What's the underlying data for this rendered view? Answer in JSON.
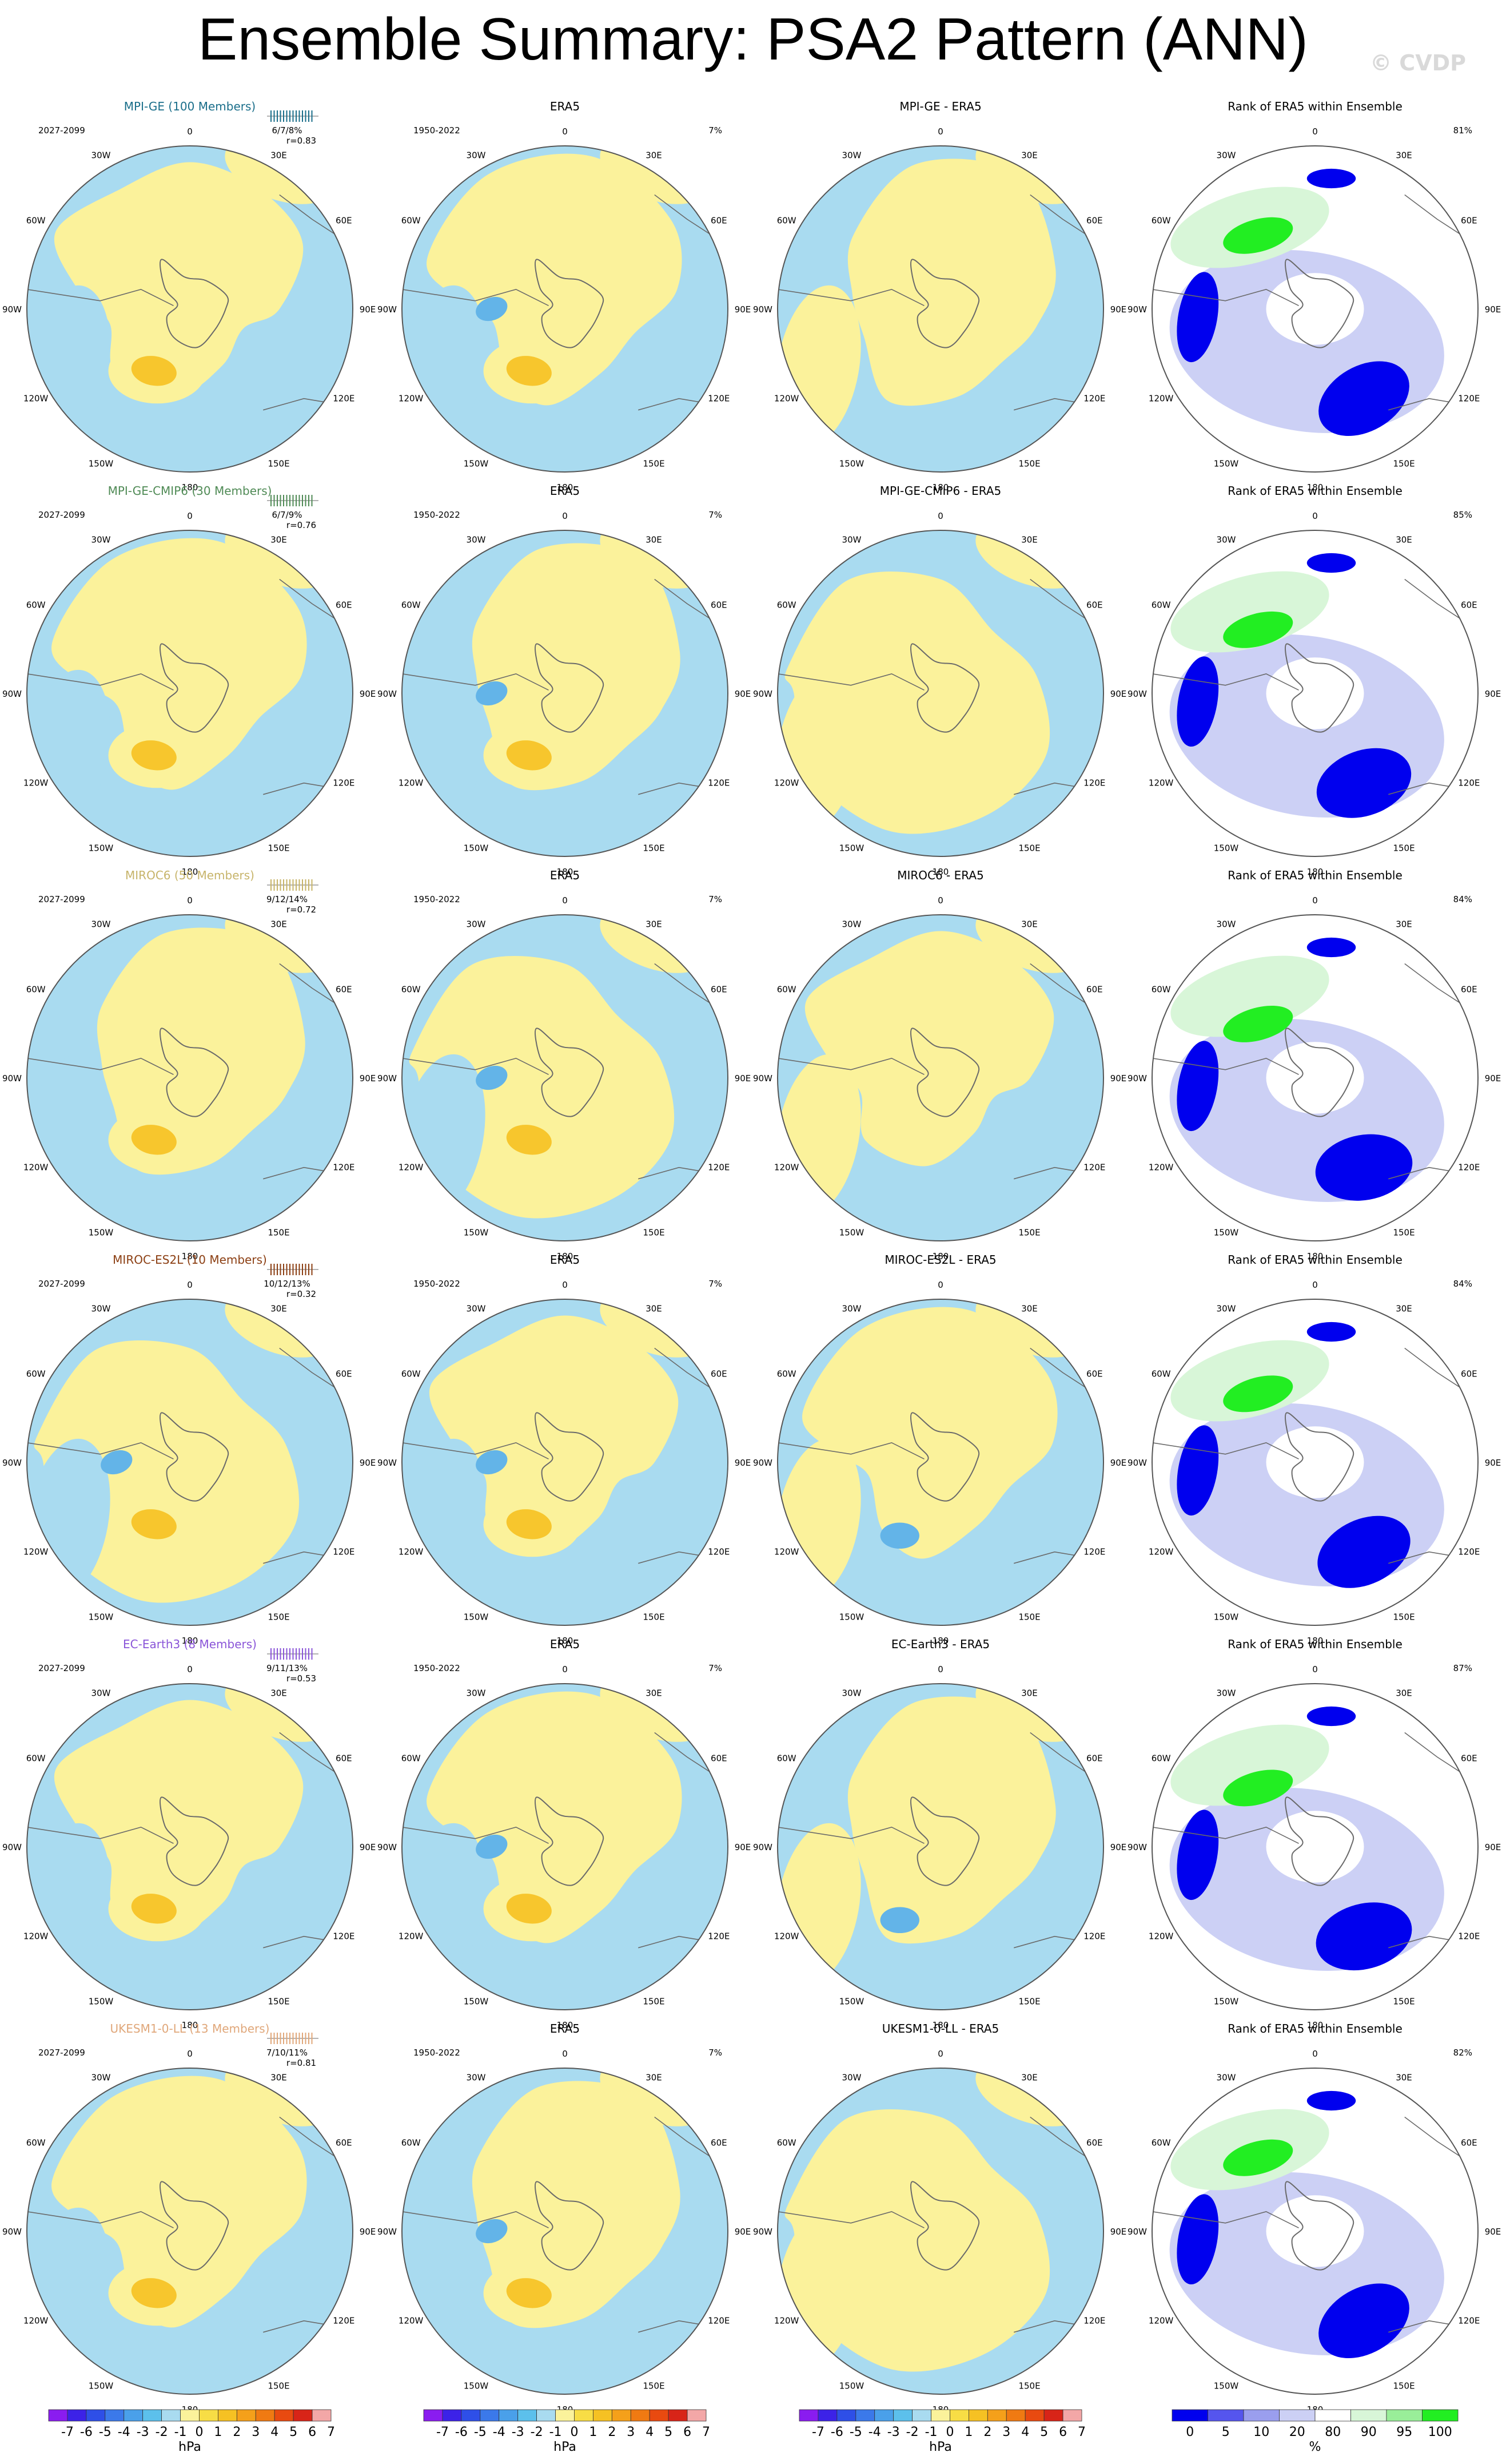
{
  "page": {
    "title": "Ensemble Summary: PSA2 Pattern (ANN)",
    "watermark": "© CVDP"
  },
  "colors": {
    "ocean_blue": "#a9dbf0",
    "land_yellow": "#fbf29b",
    "positive_strong": "#f7c62d",
    "negative_strong": "#63b4e8",
    "rank_blue": "#0000ee",
    "rank_lightblue": "#ccd0f5",
    "rank_green": "#22ee22",
    "rank_lightgreen": "#d8f6d8"
  },
  "lon_labels": [
    "0",
    "30E",
    "60E",
    "90E",
    "120E",
    "150E",
    "180",
    "150W",
    "120W",
    "90W",
    "60W",
    "30W"
  ],
  "rows": [
    {
      "model": "MPI-GE (100 Members)",
      "model_color": "#1a6e8a",
      "period": "2027-2099",
      "stats_pct": "6/7/8%",
      "stats_r": "r=0.83",
      "panels": [
        "ERA5",
        "MPI-GE - ERA5",
        "Rank of ERA5 within Ensemble"
      ],
      "era5_period": "1950-2022",
      "era5_pct": "7%",
      "rank_pct": "81%"
    },
    {
      "model": "MPI-GE-CMIP6 (30 Members)",
      "model_color": "#4f8a55",
      "period": "2027-2099",
      "stats_pct": "6/7/9%",
      "stats_r": "r=0.76",
      "panels": [
        "ERA5",
        "MPI-GE-CMIP6 - ERA5",
        "Rank of ERA5 within Ensemble"
      ],
      "era5_period": "1950-2022",
      "era5_pct": "7%",
      "rank_pct": "85%"
    },
    {
      "model": "MIROC6 (50 Members)",
      "model_color": "#c7b46a",
      "period": "2027-2099",
      "stats_pct": "9/12/14%",
      "stats_r": "r=0.72",
      "panels": [
        "ERA5",
        "MIROC6 - ERA5",
        "Rank of ERA5 within Ensemble"
      ],
      "era5_period": "1950-2022",
      "era5_pct": "7%",
      "rank_pct": "84%"
    },
    {
      "model": "MIROC-ES2L (10 Members)",
      "model_color": "#8b3e12",
      "period": "2027-2099",
      "stats_pct": "10/12/13%",
      "stats_r": "r=0.32",
      "panels": [
        "ERA5",
        "MIROC-ES2L - ERA5",
        "Rank of ERA5 within Ensemble"
      ],
      "era5_period": "1950-2022",
      "era5_pct": "7%",
      "rank_pct": "84%"
    },
    {
      "model": "EC-Earth3 (8 Members)",
      "model_color": "#8a55d8",
      "period": "2027-2099",
      "stats_pct": "9/11/13%",
      "stats_r": "r=0.53",
      "panels": [
        "ERA5",
        "EC-Earth3 - ERA5",
        "Rank of ERA5 within Ensemble"
      ],
      "era5_period": "1950-2022",
      "era5_pct": "7%",
      "rank_pct": "87%"
    },
    {
      "model": "UKESM1-0-LL (13 Members)",
      "model_color": "#e0a77a",
      "period": "2027-2099",
      "stats_pct": "7/10/11%",
      "stats_r": "r=0.81",
      "panels": [
        "ERA5",
        "UKESM1-0-LL - ERA5",
        "Rank of ERA5 within Ensemble"
      ],
      "era5_period": "1950-2022",
      "era5_pct": "7%",
      "rank_pct": "82%"
    }
  ],
  "colorbars": [
    {
      "labels": [
        "-7",
        "-6",
        "-5",
        "-4",
        "-3",
        "-2",
        "-1",
        "0",
        "1",
        "2",
        "3",
        "4",
        "5",
        "6",
        "7"
      ],
      "unit": "hPa",
      "colors": [
        "#8a1cf0",
        "#3c22e8",
        "#2e4fe8",
        "#3b79ea",
        "#4aa0ea",
        "#5cc0ec",
        "#a9dbf0",
        "#fbf29b",
        "#f8dd45",
        "#f6c123",
        "#f5a01a",
        "#f07a12",
        "#e94a10",
        "#d82418",
        "#f3a7a7"
      ]
    },
    {
      "labels": [
        "-7",
        "-6",
        "-5",
        "-4",
        "-3",
        "-2",
        "-1",
        "0",
        "1",
        "2",
        "3",
        "4",
        "5",
        "6",
        "7"
      ],
      "unit": "hPa",
      "colors": [
        "#8a1cf0",
        "#3c22e8",
        "#2e4fe8",
        "#3b79ea",
        "#4aa0ea",
        "#5cc0ec",
        "#a9dbf0",
        "#fbf29b",
        "#f8dd45",
        "#f6c123",
        "#f5a01a",
        "#f07a12",
        "#e94a10",
        "#d82418",
        "#f3a7a7"
      ]
    },
    {
      "labels": [
        "-7",
        "-6",
        "-5",
        "-4",
        "-3",
        "-2",
        "-1",
        "0",
        "1",
        "2",
        "3",
        "4",
        "5",
        "6",
        "7"
      ],
      "unit": "hPa",
      "colors": [
        "#8a1cf0",
        "#3c22e8",
        "#2e4fe8",
        "#3b79ea",
        "#4aa0ea",
        "#5cc0ec",
        "#a9dbf0",
        "#fbf29b",
        "#f8dd45",
        "#f6c123",
        "#f5a01a",
        "#f07a12",
        "#e94a10",
        "#d82418",
        "#f3a7a7"
      ]
    },
    {
      "labels": [
        "0",
        "5",
        "10",
        "20",
        "80",
        "90",
        "95",
        "100"
      ],
      "unit": "%",
      "colors": [
        "#0000ee",
        "#5555ee",
        "#9a9eee",
        "#ccd0f5",
        "#ffffff",
        "#d8f6d8",
        "#99ee99",
        "#22ee22"
      ]
    }
  ]
}
